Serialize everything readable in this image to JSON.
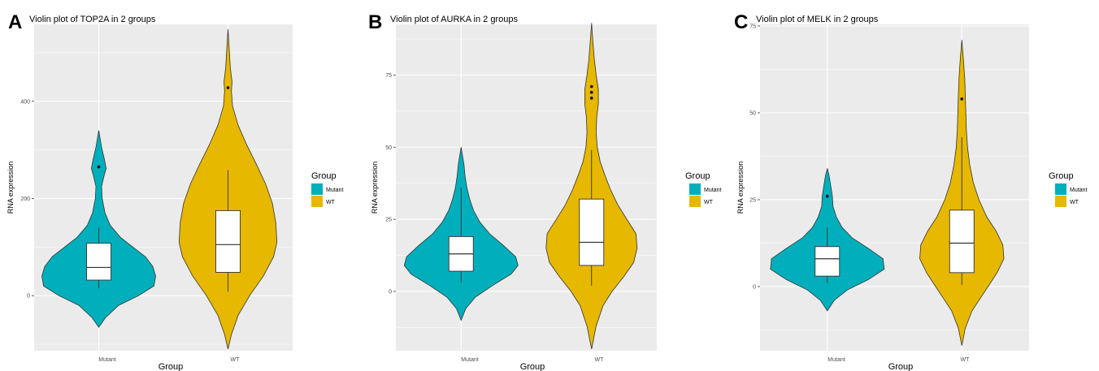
{
  "colors": {
    "panel_bg": "#ebebeb",
    "grid": "#ffffff",
    "mutant": "#00afbb",
    "wt": "#e7b800",
    "outline": "#333333",
    "box_fill": "#ffffff"
  },
  "chart_data": [
    {
      "panel_letter": "A",
      "type": "violin",
      "title": "Violin plot of TOP2A in 2 groups",
      "xlabel": "Group",
      "ylabel": "RNA expression",
      "categories": [
        "Mutant",
        "WT"
      ],
      "ylim": [
        -110,
        555
      ],
      "yticks": [
        0,
        200,
        400
      ],
      "grid": true,
      "legend": {
        "title": "Group",
        "position": "right",
        "entries": [
          "Mutant",
          "WT"
        ]
      },
      "series": [
        {
          "name": "Mutant",
          "violin_min": -65,
          "violin_max": 340,
          "profile": [
            [
              -65,
              0.0
            ],
            [
              -45,
              0.12
            ],
            [
              -20,
              0.35
            ],
            [
              0,
              0.7
            ],
            [
              20,
              0.97
            ],
            [
              40,
              1.0
            ],
            [
              60,
              0.95
            ],
            [
              80,
              0.82
            ],
            [
              100,
              0.6
            ],
            [
              120,
              0.38
            ],
            [
              145,
              0.2
            ],
            [
              170,
              0.11
            ],
            [
              200,
              0.06
            ],
            [
              225,
              0.05
            ],
            [
              245,
              0.09
            ],
            [
              262,
              0.13
            ],
            [
              280,
              0.1
            ],
            [
              305,
              0.05
            ],
            [
              340,
              0.0
            ]
          ],
          "box": {
            "q1": 32,
            "median": 58,
            "q3": 108,
            "whisker_low": 15,
            "whisker_high": 140
          },
          "outliers": [
            265
          ]
        },
        {
          "name": "WT",
          "violin_min": -110,
          "violin_max": 548,
          "profile": [
            [
              -110,
              0.0
            ],
            [
              -80,
              0.06
            ],
            [
              -40,
              0.18
            ],
            [
              0,
              0.38
            ],
            [
              40,
              0.62
            ],
            [
              80,
              0.8
            ],
            [
              110,
              0.86
            ],
            [
              150,
              0.84
            ],
            [
              190,
              0.78
            ],
            [
              230,
              0.66
            ],
            [
              270,
              0.5
            ],
            [
              310,
              0.33
            ],
            [
              350,
              0.18
            ],
            [
              390,
              0.08
            ],
            [
              420,
              0.06
            ],
            [
              440,
              0.07
            ],
            [
              470,
              0.04
            ],
            [
              510,
              0.02
            ],
            [
              548,
              0.0
            ]
          ],
          "box": {
            "q1": 48,
            "median": 105,
            "q3": 175,
            "whisker_low": 8,
            "whisker_high": 258
          },
          "outliers": [
            428
          ]
        }
      ]
    },
    {
      "panel_letter": "B",
      "type": "violin",
      "title": "Violin plot of AURKA in 2 groups",
      "xlabel": "Group",
      "ylabel": "RNA expression",
      "categories": [
        "Mutant",
        "WT"
      ],
      "ylim": [
        -20,
        92
      ],
      "yticks": [
        0,
        25,
        50,
        75
      ],
      "grid": true,
      "legend": {
        "title": "Group",
        "position": "right",
        "entries": [
          "Mutant",
          "WT"
        ]
      },
      "series": [
        {
          "name": "Mutant",
          "violin_min": -10,
          "violin_max": 50,
          "profile": [
            [
              -10,
              0.0
            ],
            [
              -6,
              0.08
            ],
            [
              -2,
              0.25
            ],
            [
              2,
              0.55
            ],
            [
              6,
              0.88
            ],
            [
              9,
              1.0
            ],
            [
              12,
              0.96
            ],
            [
              16,
              0.74
            ],
            [
              20,
              0.5
            ],
            [
              24,
              0.33
            ],
            [
              28,
              0.22
            ],
            [
              32,
              0.15
            ],
            [
              36,
              0.1
            ],
            [
              40,
              0.07
            ],
            [
              44,
              0.05
            ],
            [
              47,
              0.025
            ],
            [
              50,
              0.0
            ]
          ],
          "box": {
            "q1": 7,
            "median": 13,
            "q3": 19,
            "whisker_low": 3,
            "whisker_high": 36
          },
          "outliers": []
        },
        {
          "name": "WT",
          "violin_min": -20,
          "violin_max": 93,
          "profile": [
            [
              -20,
              0.0
            ],
            [
              -12,
              0.08
            ],
            [
              -5,
              0.2
            ],
            [
              0,
              0.36
            ],
            [
              5,
              0.56
            ],
            [
              10,
              0.74
            ],
            [
              15,
              0.8
            ],
            [
              20,
              0.78
            ],
            [
              25,
              0.62
            ],
            [
              30,
              0.46
            ],
            [
              35,
              0.34
            ],
            [
              40,
              0.24
            ],
            [
              45,
              0.15
            ],
            [
              50,
              0.1
            ],
            [
              55,
              0.08
            ],
            [
              60,
              0.09
            ],
            [
              65,
              0.12
            ],
            [
              70,
              0.12
            ],
            [
              75,
              0.08
            ],
            [
              80,
              0.05
            ],
            [
              86,
              0.025
            ],
            [
              93,
              0.0
            ]
          ],
          "box": {
            "q1": 9,
            "median": 17,
            "q3": 32,
            "whisker_low": 2,
            "whisker_high": 49
          },
          "outliers": [
            67,
            69,
            71
          ]
        }
      ]
    },
    {
      "panel_letter": "C",
      "type": "violin",
      "title": "Violin plot of MELK in 2 groups",
      "xlabel": "Group",
      "ylabel": "RNA expression",
      "categories": [
        "Mutant",
        "WT"
      ],
      "ylim": [
        -18,
        75
      ],
      "yticks": [
        0,
        25,
        50,
        75
      ],
      "grid": true,
      "legend": {
        "title": "Group",
        "position": "right",
        "entries": [
          "Mutant",
          "WT"
        ]
      },
      "series": [
        {
          "name": "Mutant",
          "violin_min": -7,
          "violin_max": 34,
          "profile": [
            [
              -7,
              0.0
            ],
            [
              -4,
              0.12
            ],
            [
              -1,
              0.35
            ],
            [
              2,
              0.72
            ],
            [
              5,
              1.0
            ],
            [
              8,
              0.98
            ],
            [
              11,
              0.72
            ],
            [
              14,
              0.44
            ],
            [
              17,
              0.26
            ],
            [
              20,
              0.16
            ],
            [
              23,
              0.1
            ],
            [
              26,
              0.09
            ],
            [
              29,
              0.06
            ],
            [
              32,
              0.03
            ],
            [
              34,
              0.0
            ]
          ],
          "box": {
            "q1": 3,
            "median": 8,
            "q3": 11.5,
            "whisker_low": 1,
            "whisker_high": 17
          },
          "outliers": [
            26
          ]
        },
        {
          "name": "WT",
          "violin_min": -17,
          "violin_max": 71,
          "profile": [
            [
              -17,
              0.0
            ],
            [
              -12,
              0.06
            ],
            [
              -7,
              0.18
            ],
            [
              -3,
              0.34
            ],
            [
              0,
              0.46
            ],
            [
              4,
              0.62
            ],
            [
              8,
              0.74
            ],
            [
              12,
              0.72
            ],
            [
              16,
              0.6
            ],
            [
              20,
              0.44
            ],
            [
              25,
              0.3
            ],
            [
              30,
              0.2
            ],
            [
              35,
              0.14
            ],
            [
              40,
              0.1
            ],
            [
              45,
              0.08
            ],
            [
              50,
              0.07
            ],
            [
              55,
              0.06
            ],
            [
              60,
              0.05
            ],
            [
              65,
              0.03
            ],
            [
              71,
              0.0
            ]
          ],
          "box": {
            "q1": 4,
            "median": 12.5,
            "q3": 22,
            "whisker_low": 0.5,
            "whisker_high": 43
          },
          "outliers": [
            54
          ]
        }
      ]
    }
  ]
}
